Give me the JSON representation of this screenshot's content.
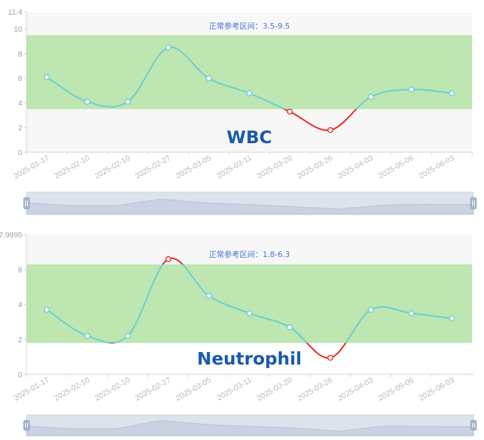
{
  "colors": {
    "normal_line": "#6ecfd2",
    "abnormal_line": "#e5332a",
    "normal_band": "#bde6b0",
    "outside_band": "#f7f7f7",
    "title": "#1c5aa9",
    "range_label": "#4a74d6"
  },
  "chart_data": [
    {
      "type": "line",
      "title": "WBC",
      "range_label": "正常参考区间：3.5-9.5",
      "normal_range": [
        3.5,
        9.5
      ],
      "categories": [
        "2025-01-17",
        "2025-02-10",
        "2025-02-10",
        "2025-02-27",
        "2025-03-05",
        "2025-03-11",
        "2025-03-20",
        "2025-03-26",
        "2025-04-03",
        "2025-05-06",
        "2025-06-03"
      ],
      "values": [
        6.1,
        4.1,
        4.1,
        8.5,
        6.0,
        4.8,
        3.3,
        1.8,
        4.5,
        5.1,
        4.8
      ],
      "ylim": [
        0,
        11.4
      ],
      "yticks": [
        0,
        2,
        4,
        6,
        8,
        10,
        11.4
      ],
      "ytick_labels": [
        "0",
        "2",
        "4",
        "6",
        "8",
        "10",
        "11.4"
      ],
      "grid": true,
      "zoom_slider": true
    },
    {
      "type": "line",
      "title": "Neutrophil",
      "range_label": "正常参考区间：1.8-6.3",
      "normal_range": [
        1.8,
        6.3
      ],
      "categories": [
        "2025-01-17",
        "2025-02-10",
        "2025-02-10",
        "2025-02-27",
        "2025-03-05",
        "2025-03-11",
        "2025-03-20",
        "2025-03-26",
        "2025-04-03",
        "2025-05-06",
        "2025-06-03"
      ],
      "values": [
        3.7,
        2.2,
        2.2,
        6.6,
        4.5,
        3.5,
        2.7,
        0.95,
        3.7,
        3.5,
        3.2
      ],
      "ylim": [
        0,
        7.9995
      ],
      "yticks": [
        0,
        2,
        4,
        6,
        7.9995
      ],
      "ytick_labels": [
        "0",
        "2",
        "4",
        "6",
        "7.9995"
      ],
      "grid": true,
      "zoom_slider": true
    }
  ]
}
